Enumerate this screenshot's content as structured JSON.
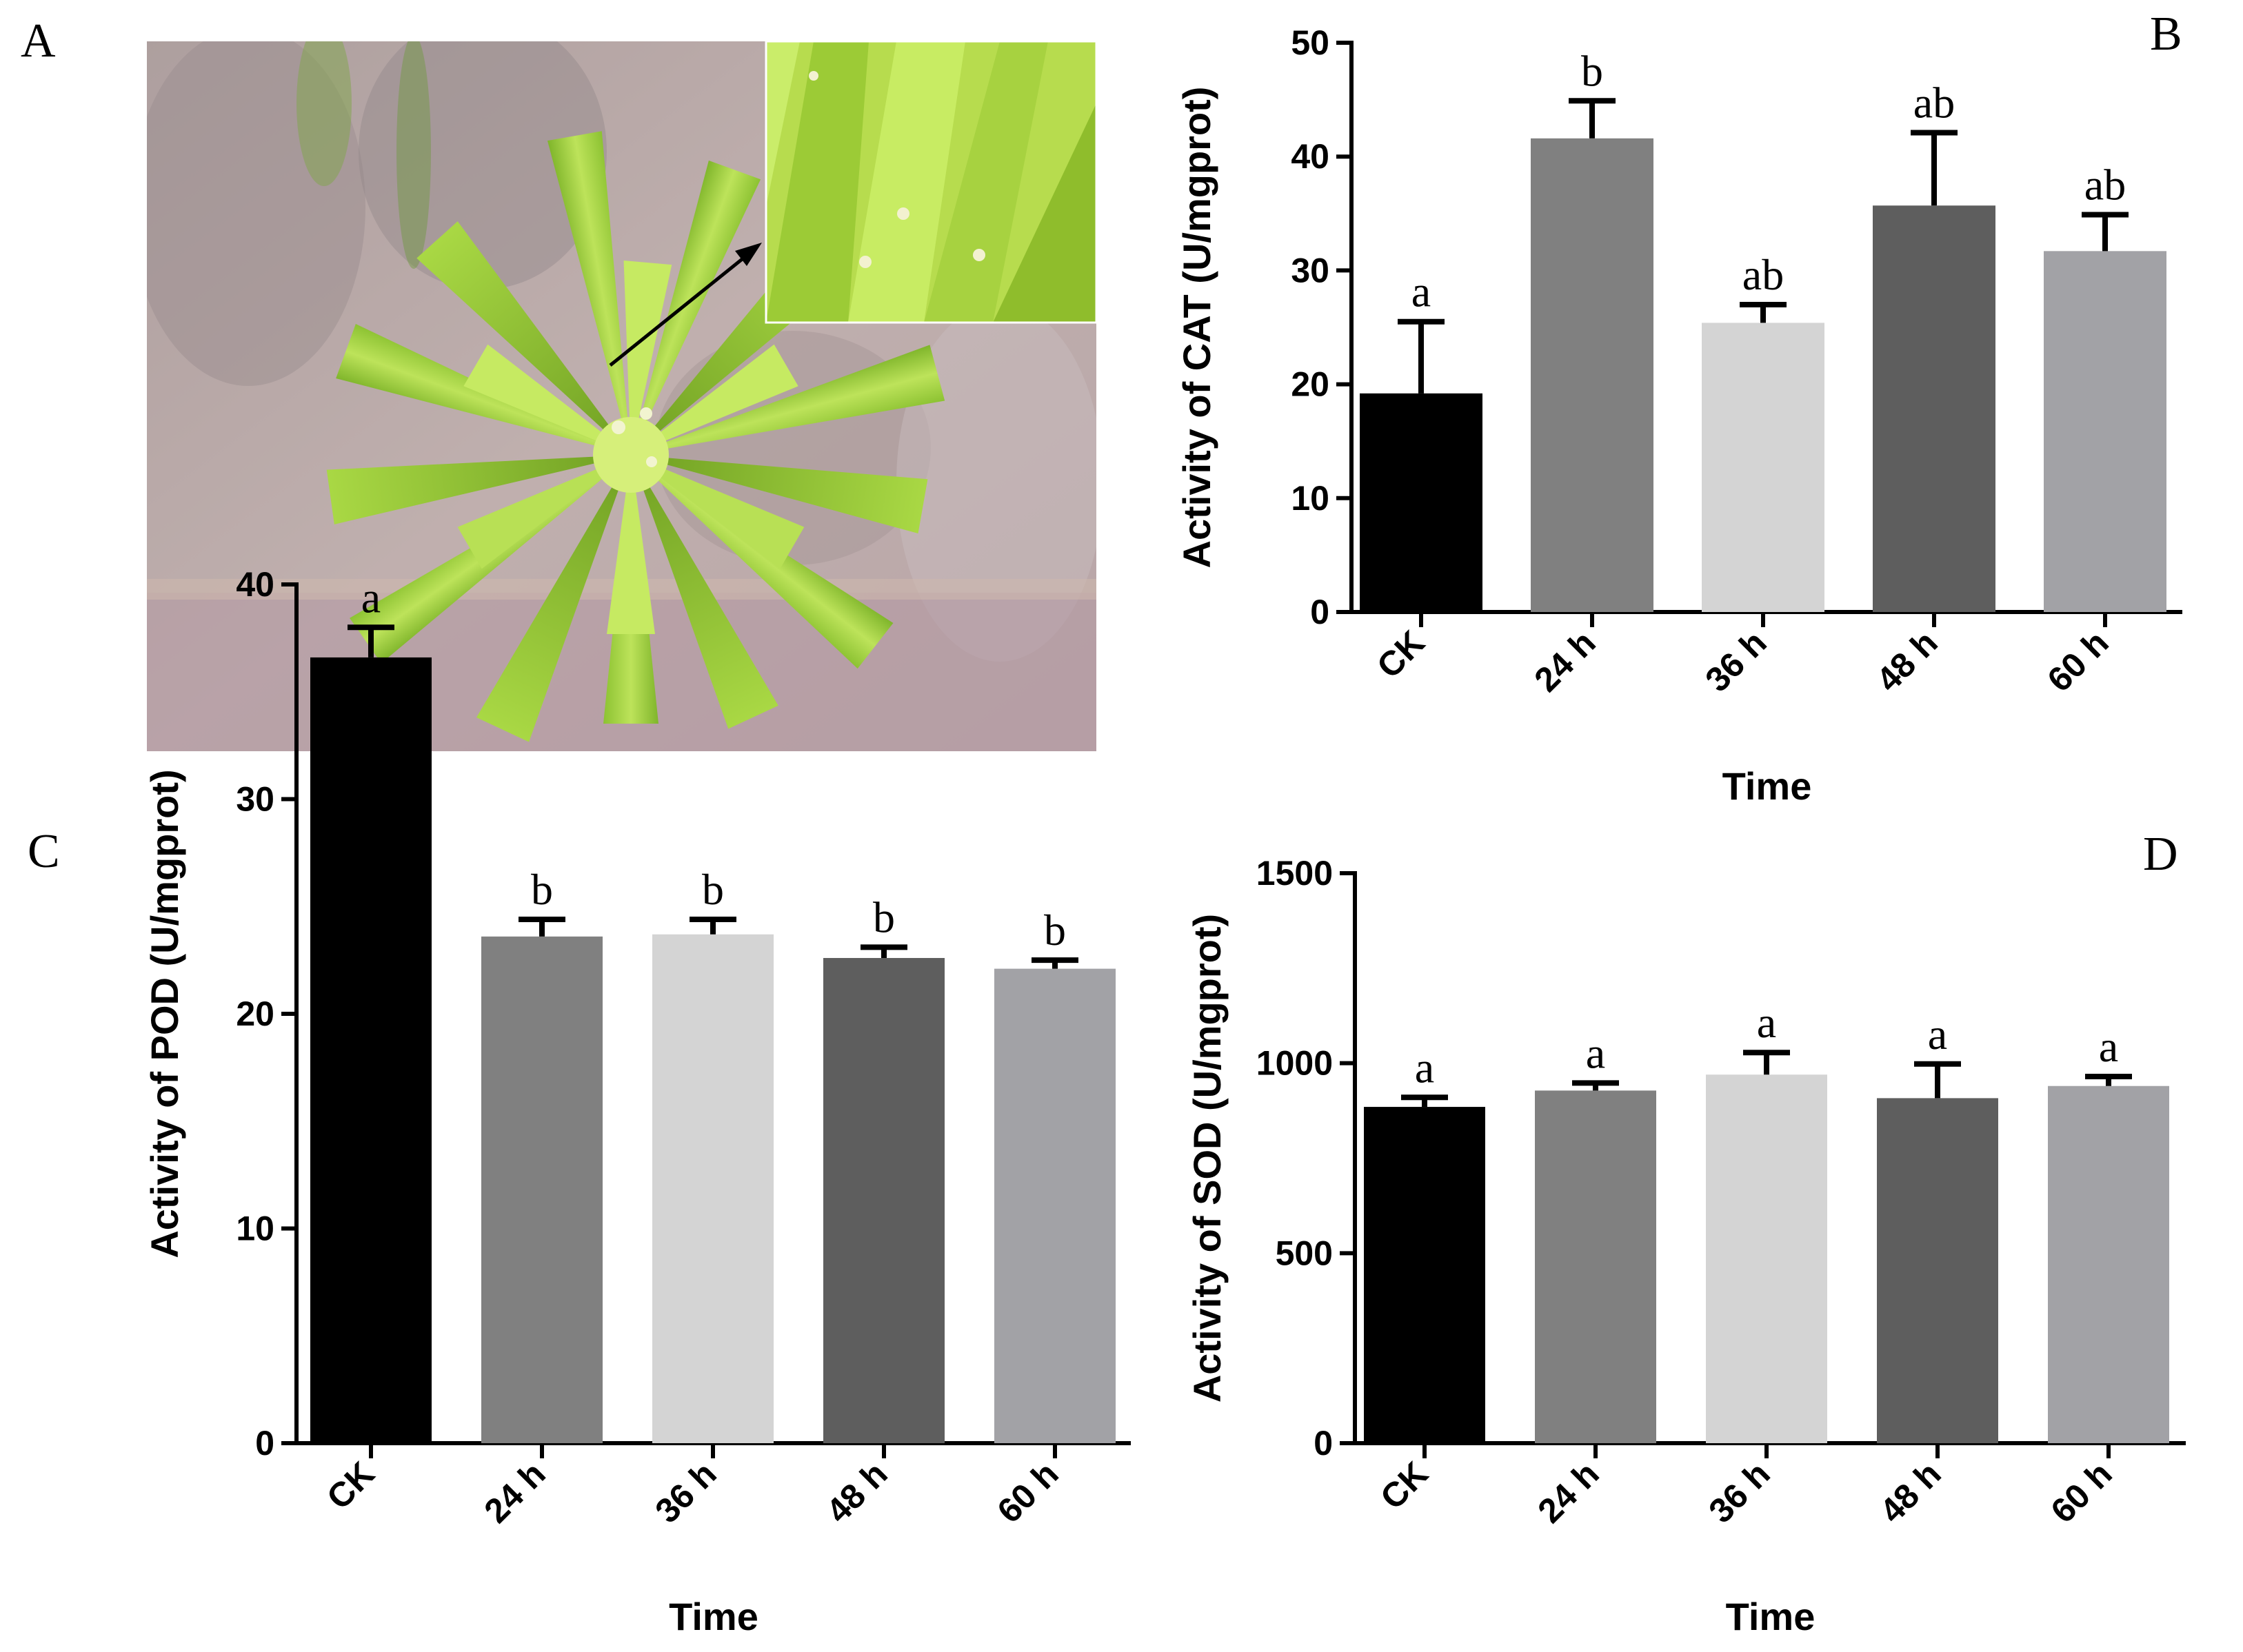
{
  "panels": {
    "A": "A",
    "B": "B",
    "C": "C",
    "D": "D"
  },
  "photo": {
    "description_icon": "lily-plantlet-photo-icon"
  },
  "chart_data": [
    {
      "panel": "B",
      "type": "bar",
      "categories": [
        "CK",
        "24 h",
        "36 h",
        "48 h",
        "60 h"
      ],
      "values": [
        19.2,
        41.6,
        25.4,
        35.7,
        31.7
      ],
      "errors": [
        6.3,
        3.3,
        1.6,
        6.4,
        3.2
      ],
      "significance": [
        "a",
        "b",
        "ab",
        "ab",
        "ab"
      ],
      "colors": [
        "#000000",
        "#808080",
        "#d4d4d4",
        "#5e5e5e",
        "#a2a2a6"
      ],
      "xlabel": "Time",
      "ylabel": "Activity of CAT (U/mgprot)",
      "ylim": [
        0,
        50
      ],
      "yticks": [
        0,
        10,
        20,
        30,
        40,
        50
      ]
    },
    {
      "panel": "C",
      "type": "bar",
      "categories": [
        "CK",
        "24 h",
        "36 h",
        "48 h",
        "60 h"
      ],
      "values": [
        36.6,
        23.6,
        23.7,
        22.6,
        22.1
      ],
      "errors": [
        1.4,
        0.8,
        0.7,
        0.5,
        0.4
      ],
      "significance": [
        "a",
        "b",
        "b",
        "b",
        "b"
      ],
      "colors": [
        "#000000",
        "#808080",
        "#d4d4d4",
        "#5e5e5e",
        "#a2a2a6"
      ],
      "xlabel": "Time",
      "ylabel": "Activity of POD (U/mgprot)",
      "ylim": [
        0,
        40
      ],
      "yticks": [
        0,
        10,
        20,
        30,
        40
      ]
    },
    {
      "panel": "D",
      "type": "bar",
      "categories": [
        "CK",
        "24 h",
        "36 h",
        "48 h",
        "60 h"
      ],
      "values": [
        885,
        928,
        970,
        908,
        940
      ],
      "errors": [
        25,
        20,
        58,
        90,
        25
      ],
      "significance": [
        "a",
        "a",
        "a",
        "a",
        "a"
      ],
      "colors": [
        "#000000",
        "#808080",
        "#d4d4d4",
        "#5e5e5e",
        "#a2a2a6"
      ],
      "xlabel": "Time",
      "ylabel": "Activity of SOD (U/mgprot)",
      "ylim": [
        0,
        1500
      ],
      "yticks": [
        0,
        500,
        1000,
        1500
      ]
    }
  ]
}
